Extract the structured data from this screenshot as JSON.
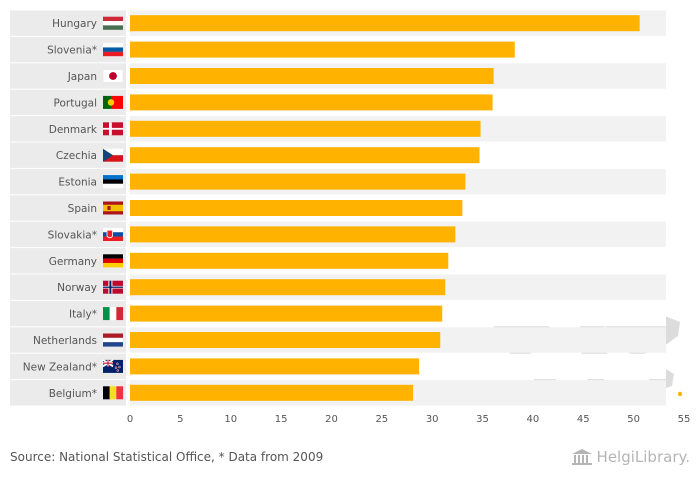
{
  "chart_data": {
    "type": "bar",
    "orientation": "horizontal",
    "categories": [
      "Hungary",
      "Slovenia*",
      "Japan",
      "Portugal",
      "Denmark",
      "Czechia",
      "Estonia",
      "Spain",
      "Slovakia*",
      "Germany",
      "Norway",
      "Italy*",
      "Netherlands",
      "New Zealand*",
      "Belgium*"
    ],
    "values": [
      50.6,
      38.2,
      36.1,
      36.0,
      34.8,
      34.7,
      33.3,
      33.0,
      32.3,
      31.6,
      31.3,
      31.0,
      30.8,
      28.7,
      28.1
    ],
    "xlim": [
      0,
      55
    ],
    "xticks": [
      0,
      5,
      10,
      15,
      20,
      25,
      30,
      35,
      40,
      45,
      50,
      55
    ],
    "grid": false,
    "bar_color": "#FFB200"
  },
  "flags": [
    {
      "country": "Hungary",
      "stripes": "h",
      "colors": [
        "#CE2939",
        "#FFFFFF",
        "#477050"
      ]
    },
    {
      "country": "Slovenia*",
      "stripes": "h",
      "colors": [
        "#FFFFFF",
        "#005DA4",
        "#ED1C24"
      ]
    },
    {
      "country": "Japan",
      "stripes": "jp",
      "colors": [
        "#FFFFFF",
        "#BC002D"
      ]
    },
    {
      "country": "Portugal",
      "stripes": "pt",
      "colors": [
        "#006600",
        "#FF0000",
        "#FFCC00"
      ]
    },
    {
      "country": "Denmark",
      "stripes": "nordic",
      "colors": [
        "#C8102E",
        "#FFFFFF"
      ]
    },
    {
      "country": "Czechia",
      "stripes": "cz",
      "colors": [
        "#FFFFFF",
        "#D7141A",
        "#11457E"
      ]
    },
    {
      "country": "Estonia",
      "stripes": "h",
      "colors": [
        "#0072CE",
        "#000000",
        "#FFFFFF"
      ]
    },
    {
      "country": "Spain",
      "stripes": "es",
      "colors": [
        "#AA151B",
        "#F1BF00",
        "#AA151B"
      ]
    },
    {
      "country": "Slovakia*",
      "stripes": "sk",
      "colors": [
        "#FFFFFF",
        "#0B4EA2",
        "#EE1C25"
      ]
    },
    {
      "country": "Germany",
      "stripes": "h",
      "colors": [
        "#000000",
        "#DD0000",
        "#FFCE00"
      ]
    },
    {
      "country": "Norway",
      "stripes": "nordic2",
      "colors": [
        "#BA0C2F",
        "#FFFFFF",
        "#00205B"
      ]
    },
    {
      "country": "Italy*",
      "stripes": "v",
      "colors": [
        "#009246",
        "#FFFFFF",
        "#CE2B37"
      ]
    },
    {
      "country": "Netherlands",
      "stripes": "h",
      "colors": [
        "#AE1C28",
        "#FFFFFF",
        "#21468B"
      ]
    },
    {
      "country": "New Zealand*",
      "stripes": "nz",
      "colors": [
        "#012169",
        "#FFFFFF",
        "#C8102E"
      ]
    },
    {
      "country": "Belgium*",
      "stripes": "v",
      "colors": [
        "#000000",
        "#FDDA24",
        "#EF3340"
      ]
    }
  ],
  "footer": {
    "source": "Source: National Statistical Office, * Data from 2009",
    "brand": "HelgiLibrary."
  },
  "colors": {
    "bar": "#FFB200",
    "label_bg": "#EBEBEB",
    "row_band": "#F2F2F2",
    "text": "#555555",
    "map": "#DDDDDD"
  }
}
